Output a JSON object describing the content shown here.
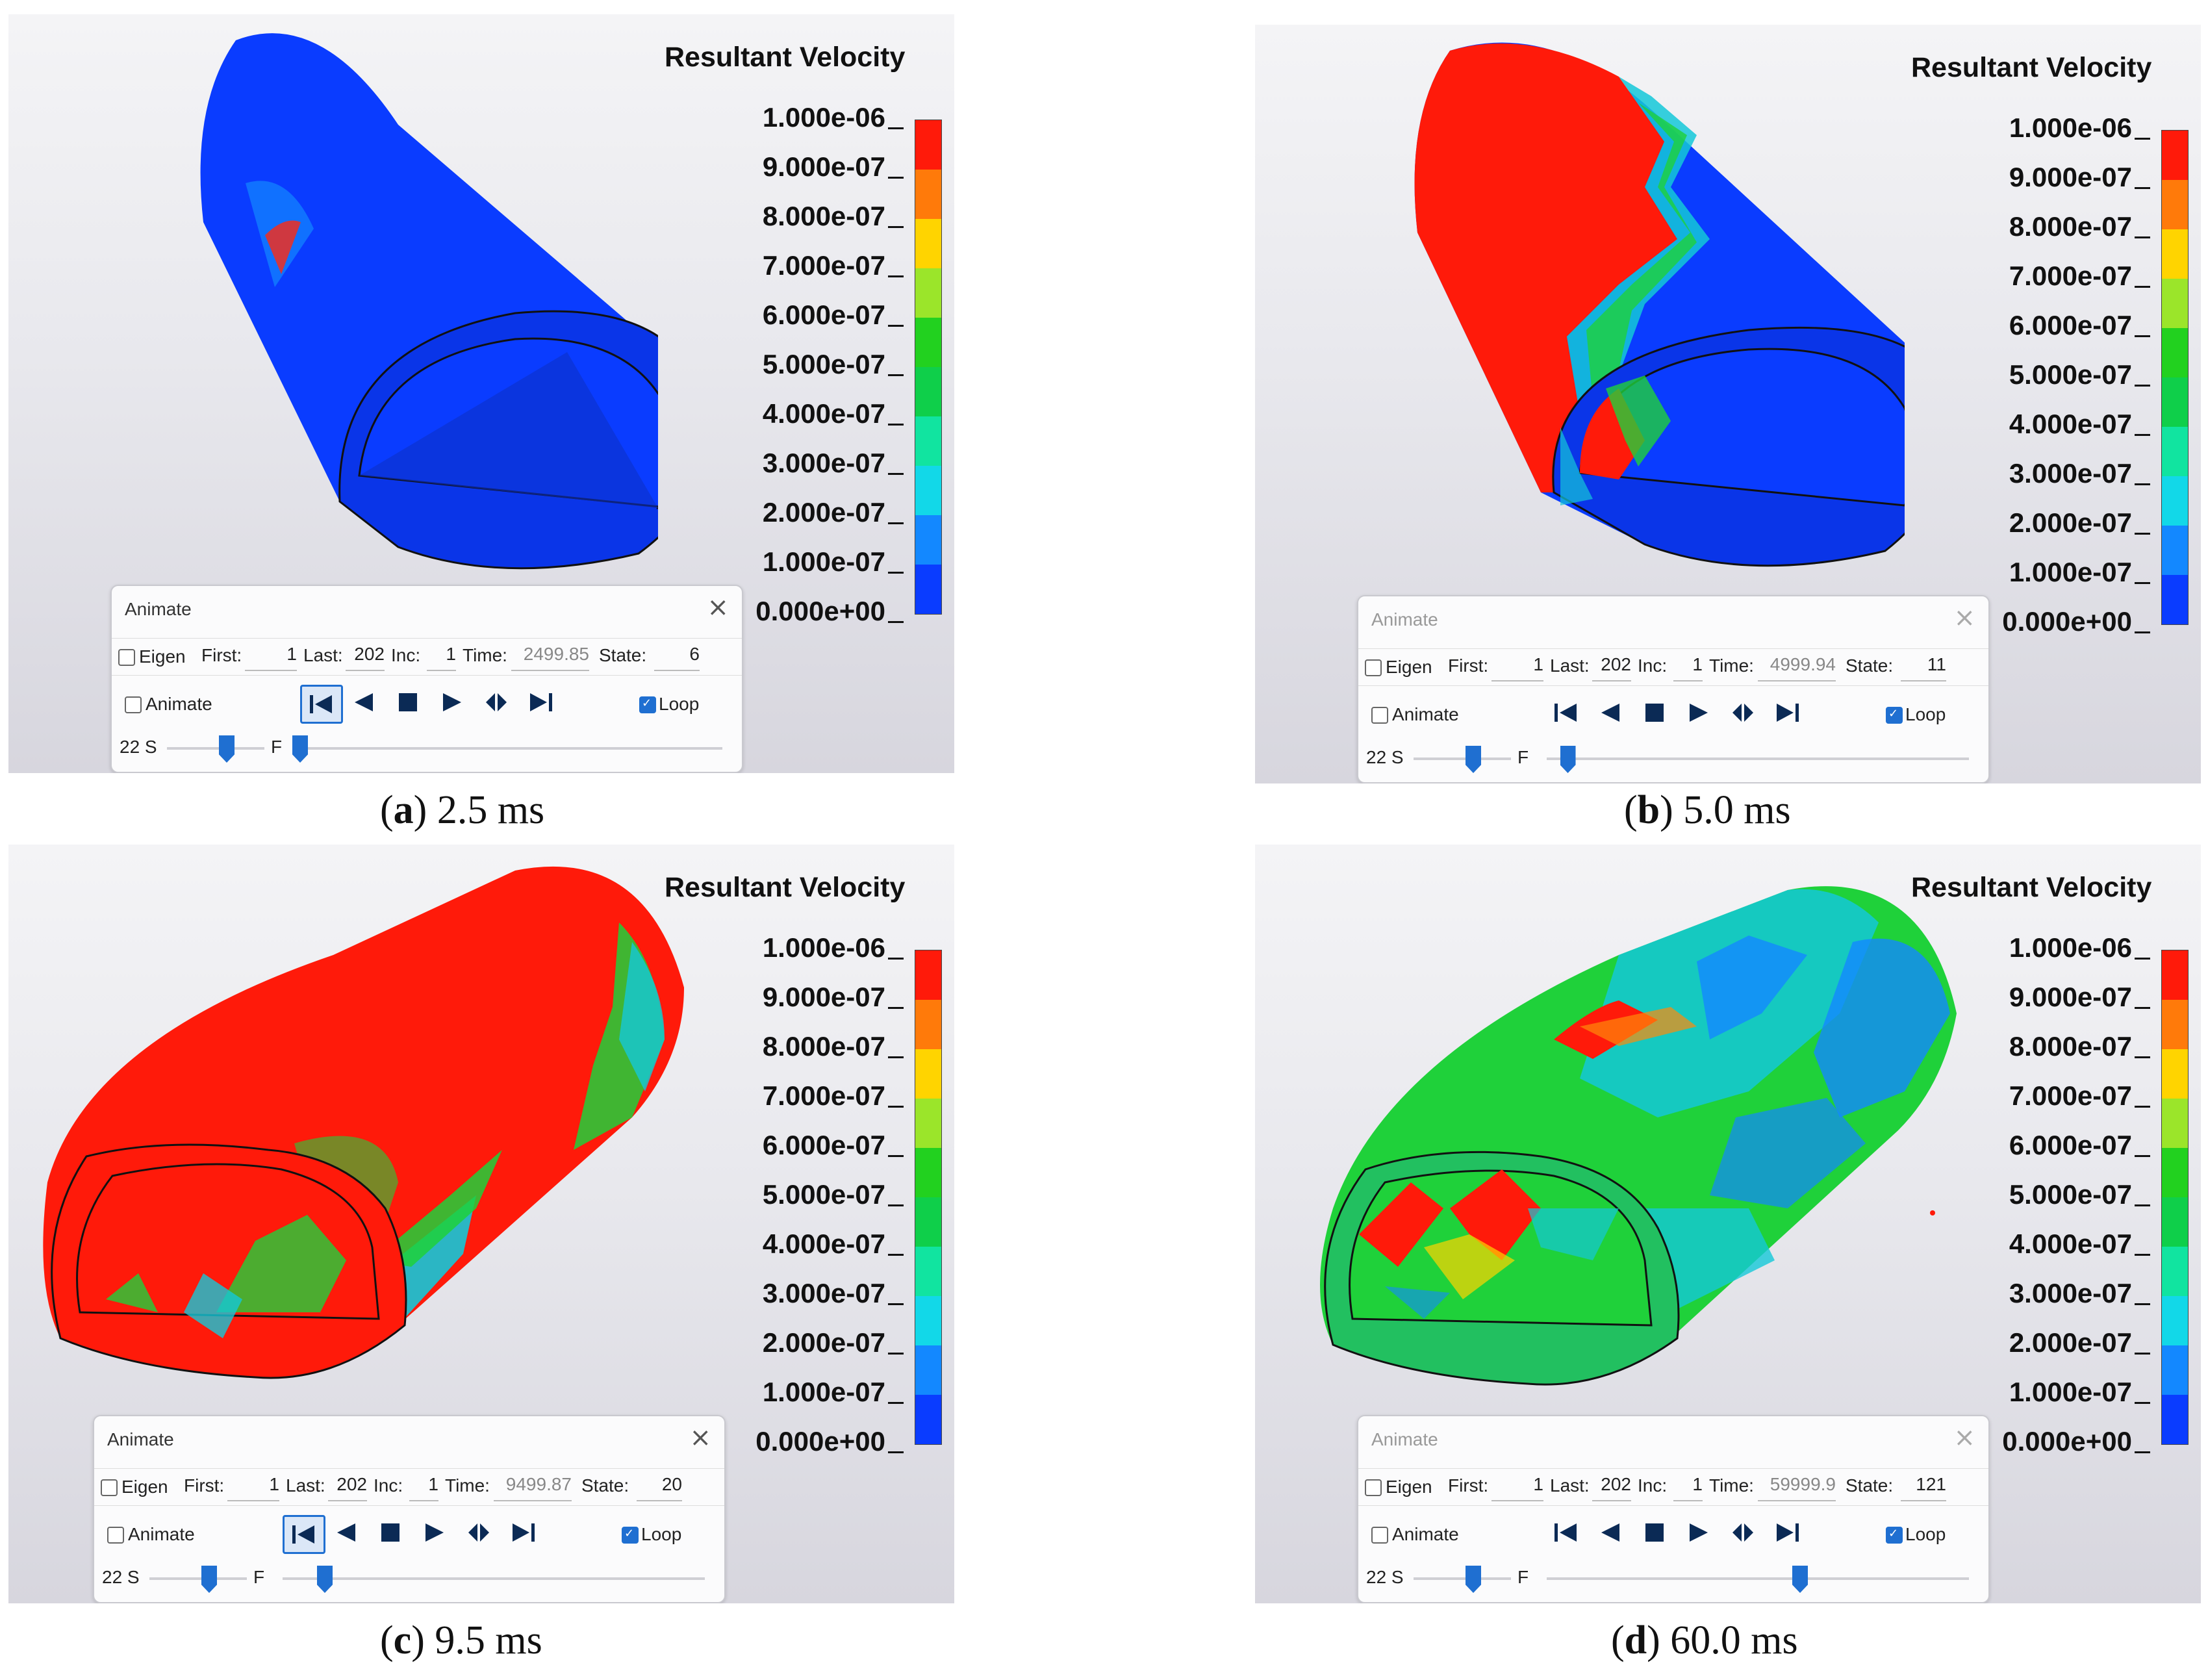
{
  "legend": {
    "title": "Resultant Velocity",
    "labels": [
      "1.000e-06",
      "9.000e-07",
      "8.000e-07",
      "7.000e-07",
      "6.000e-07",
      "5.000e-07",
      "4.000e-07",
      "3.000e-07",
      "2.000e-07",
      "1.000e-07",
      "0.000e+00"
    ],
    "colors": [
      "#ff1a0a",
      "#ff7a0a",
      "#ffd400",
      "#9be52a",
      "#22d11f",
      "#0fcf4a",
      "#11e4a0",
      "#12d8e8",
      "#1388ff",
      "#0a3cff"
    ]
  },
  "dialog_labels": {
    "title": "Animate",
    "eigen": "Eigen",
    "first": "First:",
    "last": "Last:",
    "inc": "Inc:",
    "time": "Time:",
    "state": "State:",
    "animate": "Animate",
    "loop": "Loop",
    "speed": "22 S",
    "frame": "F"
  },
  "panels": [
    {
      "letter": "a",
      "caption_value": "2.5 ms",
      "first": "1",
      "last": "202",
      "inc": "1",
      "time": "2499.85",
      "state": "6",
      "frame_fraction": 0.0
    },
    {
      "letter": "b",
      "caption_value": "5.0 ms",
      "first": "1",
      "last": "202",
      "inc": "1",
      "time": "4999.94",
      "state": "11",
      "frame_fraction": 0.05
    },
    {
      "letter": "c",
      "caption_value": "9.5 ms",
      "first": "1",
      "last": "202",
      "inc": "1",
      "time": "9499.87",
      "state": "20",
      "frame_fraction": 0.1
    },
    {
      "letter": "d",
      "caption_value": "60.0 ms",
      "first": "1",
      "last": "202",
      "inc": "1",
      "time": "59999.9",
      "state": "121",
      "frame_fraction": 0.6
    }
  ],
  "colors": {
    "blue": "#0a3cff",
    "red": "#ff1a0a",
    "green": "#1fd13a",
    "cyan": "#14c8d8",
    "accent": "#1f6fd1"
  }
}
